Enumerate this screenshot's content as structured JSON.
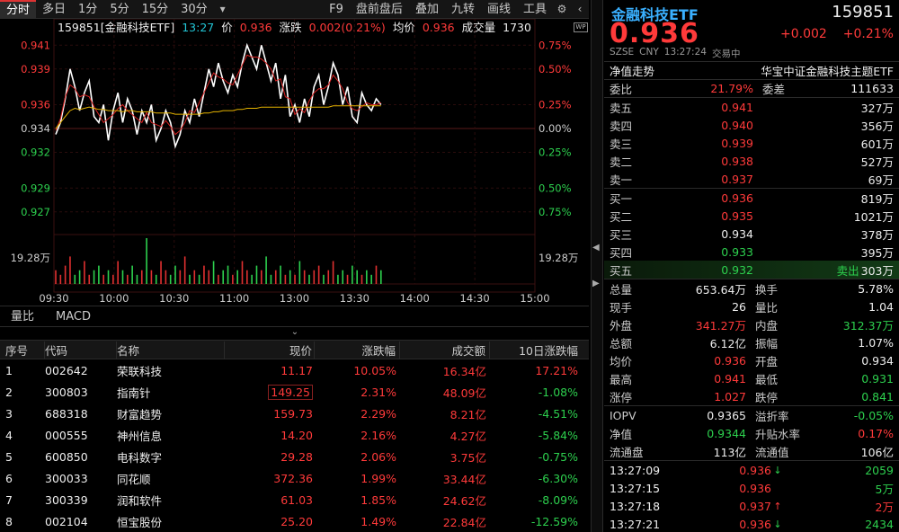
{
  "toolbar": {
    "tabs": [
      "分时",
      "多日",
      "1分",
      "5分",
      "15分",
      "30分"
    ],
    "more_icon": "chevron-down-icon",
    "items": [
      "F9",
      "盘前盘后",
      "叠加",
      "九转",
      "画线",
      "工具"
    ],
    "icons": [
      "gear-icon",
      "prev-icon"
    ]
  },
  "chart_info": {
    "code_name": "159851[金融科技ETF]",
    "time": "13:27",
    "price_label": "价",
    "price": "0.936",
    "change_label": "涨跌",
    "change": "0.002(0.21%)",
    "avg_label": "均价",
    "avg": "0.936",
    "volume_label": "成交量",
    "volume": "1730",
    "badge": "WP"
  },
  "chart_data": {
    "type": "line",
    "x_ticks": [
      "09:30",
      "10:00",
      "10:30",
      "11:00",
      "13:00",
      "13:30",
      "14:00",
      "14:30",
      "15:00"
    ],
    "y_left_ticks": [
      "0.941",
      "0.939",
      "0.936",
      "0.934",
      "0.932",
      "0.929",
      "0.927"
    ],
    "y_right_ticks": [
      "0.75%",
      "0.50%",
      "0.25%",
      "0.00%",
      "0.25%",
      "0.50%",
      "0.75%"
    ],
    "vol_label_left": "19.28万",
    "vol_label_right": "19.28万",
    "ylim": [
      0.926,
      0.942
    ],
    "prev_close": 0.934,
    "series": [
      {
        "values": [
          0.9335,
          0.9345,
          0.9365,
          0.939,
          0.9375,
          0.9355,
          0.937,
          0.938,
          0.935,
          0.9345,
          0.936,
          0.933,
          0.9355,
          0.937,
          0.9345,
          0.9365,
          0.9355,
          0.9335,
          0.9355,
          0.9345,
          0.936,
          0.933,
          0.934,
          0.9355,
          0.9345,
          0.9325,
          0.9335,
          0.9355,
          0.9345,
          0.9365,
          0.935,
          0.937,
          0.939,
          0.9375,
          0.9395,
          0.938,
          0.937,
          0.9385,
          0.9375,
          0.9395,
          0.941,
          0.94,
          0.939,
          0.941,
          0.9395,
          0.938,
          0.9395,
          0.9365,
          0.9385,
          0.935,
          0.936,
          0.9345,
          0.9365,
          0.935,
          0.9375,
          0.9385,
          0.936,
          0.9375,
          0.9395,
          0.9385,
          0.936,
          0.9375,
          0.935,
          0.9345,
          0.937,
          0.936,
          0.9355,
          0.9365,
          0.936
        ]
      },
      {
        "values": [
          0.934,
          0.9345,
          0.935,
          0.9355,
          0.9357,
          0.9356,
          0.9357,
          0.9358,
          0.9357,
          0.9356,
          0.9356,
          0.9355,
          0.9355,
          0.9355,
          0.9354,
          0.9355,
          0.9355,
          0.9354,
          0.9354,
          0.9354,
          0.9354,
          0.9353,
          0.9353,
          0.9353,
          0.9353,
          0.9352,
          0.9352,
          0.9352,
          0.9352,
          0.9352,
          0.9352,
          0.9353,
          0.9353,
          0.9354,
          0.9354,
          0.9355,
          0.9355,
          0.9355,
          0.9356,
          0.9356,
          0.9357,
          0.9357,
          0.9357,
          0.9358,
          0.9358,
          0.9358,
          0.9358,
          0.9358,
          0.9358,
          0.9358,
          0.9358,
          0.9358,
          0.9358,
          0.9358,
          0.9358,
          0.9358,
          0.9358,
          0.9358,
          0.9359,
          0.9359,
          0.9359,
          0.9359,
          0.9359,
          0.9359,
          0.9359,
          0.9359,
          0.9359,
          0.9359,
          0.9359
        ]
      }
    ],
    "volumes": [
      3,
      2,
      4,
      6,
      2,
      3,
      5,
      2,
      3,
      4,
      2,
      3,
      2,
      5,
      3,
      2,
      4,
      2,
      3,
      10,
      3,
      2,
      5,
      3,
      2,
      4,
      3,
      6,
      2,
      3,
      2,
      4,
      3,
      5,
      2,
      3,
      4,
      2,
      3,
      5,
      3,
      2,
      4,
      3,
      6,
      2,
      3,
      4,
      2,
      3,
      2,
      5,
      3,
      2,
      3,
      4,
      2,
      3,
      5,
      2,
      3,
      2,
      4,
      3,
      2,
      3,
      2,
      4,
      3
    ],
    "vol_max": 10
  },
  "indicator_tabs": [
    "量比",
    "MACD"
  ],
  "table": {
    "headers": [
      "序号",
      "代码",
      "名称",
      "现价",
      "涨跌幅",
      "成交额",
      "10日涨跌幅"
    ],
    "rows": [
      [
        "1",
        "002642",
        "荣联科技",
        "11.17",
        "10.05%",
        "16.34亿",
        "17.21%"
      ],
      [
        "2",
        "300803",
        "指南针",
        "149.25",
        "2.31%",
        "48.09亿",
        "-1.08%"
      ],
      [
        "3",
        "688318",
        "财富趋势",
        "159.73",
        "2.29%",
        "8.21亿",
        "-4.51%"
      ],
      [
        "4",
        "000555",
        "神州信息",
        "14.20",
        "2.16%",
        "4.27亿",
        "-5.84%"
      ],
      [
        "5",
        "600850",
        "电科数字",
        "29.28",
        "2.06%",
        "3.75亿",
        "-0.75%"
      ],
      [
        "6",
        "300033",
        "同花顺",
        "372.36",
        "1.99%",
        "33.44亿",
        "-6.30%"
      ],
      [
        "7",
        "300339",
        "润和软件",
        "61.03",
        "1.85%",
        "24.62亿",
        "-8.09%"
      ],
      [
        "8",
        "002104",
        "恒宝股份",
        "25.20",
        "1.49%",
        "22.84亿",
        "-12.59%"
      ]
    ]
  },
  "quote": {
    "name": "金融科技ETF",
    "code": "159851",
    "price": "0.936",
    "change": "+0.002",
    "change_pct": "+0.21%",
    "meta_exchange": "SZSE",
    "meta_currency": "CNY",
    "meta_time": "13:27:24",
    "meta_status": "交易中",
    "nav_label": "净值走势",
    "fund_name": "华宝中证金融科技主题ETF",
    "ratio_label": "委比",
    "ratio": "21.79%",
    "diff_label": "委差",
    "diff": "111633",
    "asks": [
      {
        "name": "卖五",
        "price": "0.941",
        "vol": "327万"
      },
      {
        "name": "卖四",
        "price": "0.940",
        "vol": "356万"
      },
      {
        "name": "卖三",
        "price": "0.939",
        "vol": "601万"
      },
      {
        "name": "卖二",
        "price": "0.938",
        "vol": "527万"
      },
      {
        "name": "卖一",
        "price": "0.937",
        "vol": "69万"
      }
    ],
    "bids": [
      {
        "name": "买一",
        "price": "0.936",
        "vol": "819万"
      },
      {
        "name": "买二",
        "price": "0.935",
        "vol": "1021万"
      },
      {
        "name": "买三",
        "price": "0.934",
        "vol": "378万"
      },
      {
        "name": "买四",
        "price": "0.933",
        "vol": "395万"
      },
      {
        "name": "买五",
        "price": "0.932",
        "vol": "303万",
        "tag": "卖出"
      }
    ],
    "bid_colors": [
      "#ff3a3a",
      "#ff3a3a",
      "#eeeeee",
      "#2dd04e",
      "#2dd04e"
    ],
    "stats": [
      {
        "n": "总量",
        "v": "653.64万",
        "n2": "换手",
        "v2": "5.78%",
        "c": "#eeeeee",
        "c2": "#eeeeee"
      },
      {
        "n": "现手",
        "v": "26",
        "n2": "量比",
        "v2": "1.04",
        "c": "#eeeeee",
        "c2": "#eeeeee"
      },
      {
        "n": "外盘",
        "v": "341.27万",
        "n2": "内盘",
        "v2": "312.37万",
        "c": "#ff3a3a",
        "c2": "#2dd04e"
      },
      {
        "n": "总额",
        "v": "6.12亿",
        "n2": "振幅",
        "v2": "1.07%",
        "c": "#eeeeee",
        "c2": "#eeeeee"
      },
      {
        "n": "均价",
        "v": "0.936",
        "n2": "开盘",
        "v2": "0.934",
        "c": "#ff3a3a",
        "c2": "#eeeeee"
      },
      {
        "n": "最高",
        "v": "0.941",
        "n2": "最低",
        "v2": "0.931",
        "c": "#ff3a3a",
        "c2": "#2dd04e"
      },
      {
        "n": "涨停",
        "v": "1.027",
        "n2": "跌停",
        "v2": "0.841",
        "c": "#ff3a3a",
        "c2": "#2dd04e"
      }
    ],
    "stats2": [
      {
        "n": "IOPV",
        "v": "0.9365",
        "n2": "溢折率",
        "v2": "-0.05%",
        "c": "#eeeeee",
        "c2": "#2dd04e"
      },
      {
        "n": "净值",
        "v": "0.9344",
        "n2": "升贴水率",
        "v2": "0.17%",
        "c": "#2dd04e",
        "c2": "#ff3a3a"
      },
      {
        "n": "流通盘",
        "v": "113亿",
        "n2": "流通值",
        "v2": "106亿",
        "c": "#eeeeee",
        "c2": "#eeeeee"
      }
    ],
    "ticks": [
      {
        "t": "13:27:09",
        "p": "0.936",
        "a": "↓",
        "v": "2059",
        "pc": "#ff3a3a",
        "ac": "#2dd04e",
        "vc": "#2dd04e"
      },
      {
        "t": "13:27:15",
        "p": "0.936",
        "a": "",
        "v": "5万",
        "pc": "#ff3a3a",
        "ac": "#2dd04e",
        "vc": "#2dd04e"
      },
      {
        "t": "13:27:18",
        "p": "0.937",
        "a": "↑",
        "v": "2万",
        "pc": "#ff3a3a",
        "ac": "#ff3a3a",
        "vc": "#ff3a3a"
      },
      {
        "t": "13:27:21",
        "p": "0.936",
        "a": "↓",
        "v": "2434",
        "pc": "#ff3a3a",
        "ac": "#2dd04e",
        "vc": "#2dd04e"
      }
    ]
  }
}
